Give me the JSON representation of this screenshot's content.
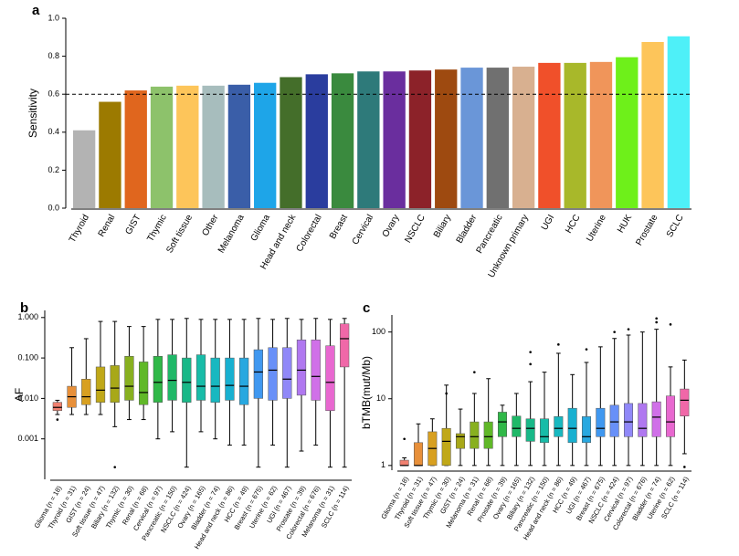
{
  "chart_data": [
    {
      "type": "bar",
      "panel_label": "a",
      "y_label": "Sensitivity",
      "categories": [
        "Thyroid",
        "Renal",
        "GIST",
        "Thymic",
        "Soft tissue",
        "Other",
        "Melanoma",
        "Glioma",
        "Head and neck",
        "Colorectal",
        "Breast",
        "Cervical",
        "Ovary",
        "NSCLC",
        "Biliary",
        "Bladder",
        "Pancreatic",
        "Unknown primary",
        "UGI",
        "HCC",
        "Uterine",
        "HUK",
        "Prostate",
        "SCLC"
      ],
      "values": [
        0.41,
        0.56,
        0.62,
        0.64,
        0.645,
        0.645,
        0.65,
        0.66,
        0.69,
        0.705,
        0.71,
        0.72,
        0.72,
        0.725,
        0.73,
        0.74,
        0.74,
        0.745,
        0.765,
        0.765,
        0.77,
        0.795,
        0.875,
        0.905
      ],
      "colors": [
        "#b3b3b3",
        "#9c7a00",
        "#e0661e",
        "#8dc26b",
        "#fdc55a",
        "#a7bdbd",
        "#3a5ea8",
        "#1ea5e8",
        "#446e2a",
        "#2a3d9e",
        "#3a8a3e",
        "#2e7a7a",
        "#6a2e9e",
        "#8c2229",
        "#9e4a10",
        "#6a96d8",
        "#707070",
        "#d8b090",
        "#f0502a",
        "#a8b82a",
        "#f0955a",
        "#6ef01a",
        "#fdc55a",
        "#4ef0f8"
      ],
      "ylim": [
        0,
        1
      ],
      "yticks": [
        {
          "value": 0,
          "label": "0.0"
        },
        {
          "value": 0.2,
          "label": "0.2"
        },
        {
          "value": 0.4,
          "label": "0.4"
        },
        {
          "value": 0.6,
          "label": "0.6"
        },
        {
          "value": 0.8,
          "label": "0.8"
        },
        {
          "value": 1,
          "label": "1.0"
        }
      ],
      "reference_line": 0.6
    },
    {
      "type": "box",
      "panel_label": "b",
      "y_label": "AF",
      "log_scale": true,
      "categories": [
        "Glioma (n = 18)",
        "Thyroid (n = 31)",
        "GIST (n = 24)",
        "Soft tissue (n = 47)",
        "Biliary (n = 132)",
        "Thymic (n = 30)",
        "Renal (n = 68)",
        "Cervical (n = 97)",
        "Pancreatic (n = 150)",
        "NSCLC (n = 424)",
        "Ovary (n = 165)",
        "Bladder (n = 74)",
        "Head and neck (n = 86)",
        "HCC (n = 49)",
        "Breast (n = 675)",
        "Uterine (n = 62)",
        "UGI (n = 467)",
        "Prostate (n = 39)",
        "Colorectal (n = 676)",
        "Melanoma (n = 31)",
        "SCLC (n = 114)"
      ],
      "boxes": [
        {
          "low": 0.004,
          "q1": 0.005,
          "median": 0.006,
          "q3": 0.008,
          "high": 0.009,
          "outliers": [
            0.003
          ]
        },
        {
          "low": 0.004,
          "q1": 0.006,
          "median": 0.011,
          "q3": 0.02,
          "high": 0.18,
          "outliers": []
        },
        {
          "low": 0.004,
          "q1": 0.007,
          "median": 0.011,
          "q3": 0.03,
          "high": 0.3,
          "outliers": []
        },
        {
          "low": 0.004,
          "q1": 0.008,
          "median": 0.016,
          "q3": 0.06,
          "high": 0.8,
          "outliers": []
        },
        {
          "low": 0.002,
          "q1": 0.008,
          "median": 0.018,
          "q3": 0.065,
          "high": 0.8,
          "outliers": [
            0.0002
          ]
        },
        {
          "low": 0.003,
          "q1": 0.009,
          "median": 0.02,
          "q3": 0.11,
          "high": 0.6,
          "outliers": []
        },
        {
          "low": 0.003,
          "q1": 0.007,
          "median": 0.014,
          "q3": 0.08,
          "high": 0.6,
          "outliers": []
        },
        {
          "low": 0.001,
          "q1": 0.008,
          "median": 0.025,
          "q3": 0.11,
          "high": 0.9,
          "outliers": []
        },
        {
          "low": 0.0015,
          "q1": 0.009,
          "median": 0.028,
          "q3": 0.12,
          "high": 0.9,
          "outliers": []
        },
        {
          "low": 0.0002,
          "q1": 0.008,
          "median": 0.025,
          "q3": 0.1,
          "high": 0.95,
          "outliers": []
        },
        {
          "low": 0.0015,
          "q1": 0.009,
          "median": 0.02,
          "q3": 0.12,
          "high": 0.9,
          "outliers": []
        },
        {
          "low": 0.001,
          "q1": 0.008,
          "median": 0.02,
          "q3": 0.1,
          "high": 0.9,
          "outliers": []
        },
        {
          "low": 0.0007,
          "q1": 0.009,
          "median": 0.021,
          "q3": 0.1,
          "high": 0.9,
          "outliers": []
        },
        {
          "low": 0.0007,
          "q1": 0.007,
          "median": 0.02,
          "q3": 0.1,
          "high": 0.9,
          "outliers": []
        },
        {
          "low": 0.0002,
          "q1": 0.01,
          "median": 0.045,
          "q3": 0.16,
          "high": 0.95,
          "outliers": []
        },
        {
          "low": 0.0007,
          "q1": 0.009,
          "median": 0.05,
          "q3": 0.18,
          "high": 0.9,
          "outliers": []
        },
        {
          "low": 0.0002,
          "q1": 0.01,
          "median": 0.03,
          "q3": 0.18,
          "high": 0.95,
          "outliers": []
        },
        {
          "low": 0.0005,
          "q1": 0.012,
          "median": 0.05,
          "q3": 0.28,
          "high": 0.9,
          "outliers": []
        },
        {
          "low": 0.0007,
          "q1": 0.009,
          "median": 0.035,
          "q3": 0.28,
          "high": 0.95,
          "outliers": []
        },
        {
          "low": 0.0002,
          "q1": 0.005,
          "median": 0.025,
          "q3": 0.2,
          "high": 0.9,
          "outliers": []
        },
        {
          "low": 0.0002,
          "q1": 0.06,
          "median": 0.3,
          "q3": 0.7,
          "high": 0.95,
          "outliers": []
        }
      ],
      "colors": [
        "#f08070",
        "#e8903a",
        "#d8a020",
        "#c0a818",
        "#a8a818",
        "#88b020",
        "#60b828",
        "#30b848",
        "#20b868",
        "#18b888",
        "#18bca8",
        "#18b8c0",
        "#18b0d0",
        "#28a8e0",
        "#4098f0",
        "#6890f8",
        "#9088f8",
        "#b078f0",
        "#d070e8",
        "#e868d0",
        "#f068a8"
      ],
      "ylim": [
        0.0001,
        1.5
      ],
      "yticks": [
        {
          "value": 0.001,
          "label": "0.001"
        },
        {
          "value": 0.01,
          "label": "0.010"
        },
        {
          "value": 0.1,
          "label": "0.100"
        },
        {
          "value": 1,
          "label": "1.000"
        }
      ]
    },
    {
      "type": "box",
      "panel_label": "c",
      "y_label": "bTMB(mut/Mb)",
      "log_scale": true,
      "categories": [
        "Glioma (n = 18)",
        "Thyroid (n = 31)",
        "Soft tissue (n = 47)",
        "Thymic (n = 30)",
        "GIST (n = 24)",
        "Melanoma (n = 31)",
        "Renal (n = 68)",
        "Prostate (n = 39)",
        "Ovary (n = 165)",
        "Biliary (n = 132)",
        "Pancreatic (n = 150)",
        "Head and neck (n = 86)",
        "HCC (n = 49)",
        "UGI (n = 467)",
        "Breast (n = 675)",
        "NSCLC (n = 424)",
        "Cervical (n = 97)",
        "Colorectal (n = 676)",
        "Bladder (n = 74)",
        "Uterine (n = 62)",
        "SCLC (n = 114)"
      ],
      "boxes": [
        {
          "low": 1,
          "q1": 1,
          "median": 1,
          "q3": 1.2,
          "high": 1.3,
          "outliers": [
            2.5
          ]
        },
        {
          "low": 1,
          "q1": 1,
          "median": 1,
          "q3": 2.2,
          "high": 4.2,
          "outliers": []
        },
        {
          "low": 1,
          "q1": 1,
          "median": 1.8,
          "q3": 3.2,
          "high": 5,
          "outliers": []
        },
        {
          "low": 1,
          "q1": 1,
          "median": 2.3,
          "q3": 3.6,
          "high": 16,
          "outliers": [
            12
          ]
        },
        {
          "low": 1,
          "q1": 1.8,
          "median": 2.7,
          "q3": 3,
          "high": 7,
          "outliers": []
        },
        {
          "low": 1,
          "q1": 1.8,
          "median": 2.7,
          "q3": 4.5,
          "high": 12,
          "outliers": [
            25
          ]
        },
        {
          "low": 1,
          "q1": 1.8,
          "median": 2.7,
          "q3": 4.5,
          "high": 20,
          "outliers": []
        },
        {
          "low": 1,
          "q1": 2.7,
          "median": 4.5,
          "q3": 6.3,
          "high": 8,
          "outliers": []
        },
        {
          "low": 1,
          "q1": 2.7,
          "median": 3.6,
          "q3": 5.5,
          "high": 12,
          "outliers": []
        },
        {
          "low": 1,
          "q1": 2.3,
          "median": 3.6,
          "q3": 5,
          "high": 18,
          "outliers": [
            33,
            50
          ]
        },
        {
          "low": 1,
          "q1": 2.2,
          "median": 2.7,
          "q3": 5,
          "high": 25,
          "outliers": []
        },
        {
          "low": 1,
          "q1": 2.7,
          "median": 3.6,
          "q3": 5.4,
          "high": 48,
          "outliers": [
            65
          ]
        },
        {
          "low": 1,
          "q1": 2.2,
          "median": 3.6,
          "q3": 7.2,
          "high": 23,
          "outliers": []
        },
        {
          "low": 1,
          "q1": 2.2,
          "median": 2.7,
          "q3": 5.4,
          "high": 35,
          "outliers": [
            55
          ]
        },
        {
          "low": 1,
          "q1": 2.7,
          "median": 3.6,
          "q3": 7.2,
          "high": 60,
          "outliers": []
        },
        {
          "low": 1,
          "q1": 2.7,
          "median": 4.5,
          "q3": 8,
          "high": 80,
          "outliers": [
            100
          ]
        },
        {
          "low": 1,
          "q1": 2.7,
          "median": 4.5,
          "q3": 8.5,
          "high": 90,
          "outliers": [
            110
          ]
        },
        {
          "low": 1,
          "q1": 2.7,
          "median": 3.6,
          "q3": 8.5,
          "high": 100,
          "outliers": []
        },
        {
          "low": 1,
          "q1": 2.7,
          "median": 5.3,
          "q3": 9,
          "high": 110,
          "outliers": [
            140,
            160
          ]
        },
        {
          "low": 1,
          "q1": 2.7,
          "median": 4.5,
          "q3": 11,
          "high": 30,
          "outliers": [
            130
          ]
        },
        {
          "low": 1.5,
          "q1": 5.5,
          "median": 9.5,
          "q3": 14,
          "high": 38,
          "outliers": [
            0.95
          ]
        }
      ],
      "colors": [
        "#f08070",
        "#e8903a",
        "#d8a020",
        "#c0a818",
        "#a8a818",
        "#88b020",
        "#60b828",
        "#30b848",
        "#20b868",
        "#18b888",
        "#18bca8",
        "#18b8c0",
        "#18b0d0",
        "#28a8e0",
        "#4098f0",
        "#6890f8",
        "#9088f8",
        "#b078f0",
        "#d070e8",
        "#e868d0",
        "#f068a8"
      ],
      "ylim": [
        0.85,
        180
      ],
      "yticks": [
        1,
        10,
        100
      ]
    }
  ]
}
